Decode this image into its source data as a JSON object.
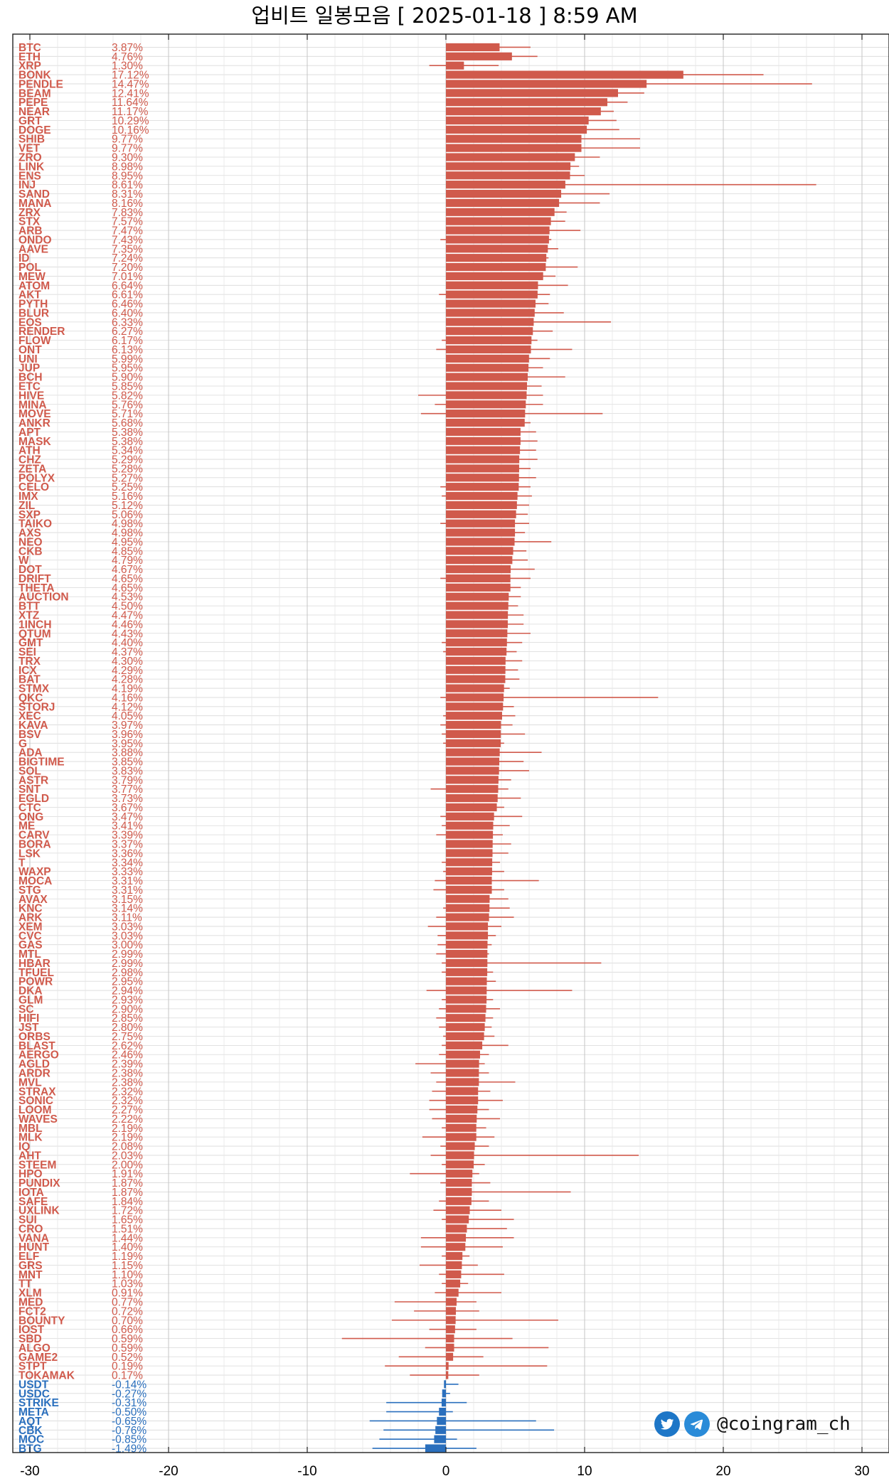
{
  "chart_data": {
    "type": "bar",
    "orientation": "horizontal",
    "title": "업비트 일봉모음 [ 2025-01-18 ]  8:59 AM",
    "xlabel": "",
    "ylabel": "",
    "xlim": [
      -30,
      30
    ],
    "xticks": [
      "-30",
      "-20",
      "-10",
      "0",
      "10",
      "20",
      "30"
    ],
    "grid": true,
    "colors": {
      "positive": "#d05a4c",
      "negative": "#2a6fbd"
    },
    "categories": [
      "BTC",
      "ETH",
      "XRP",
      "BONK",
      "PENDLE",
      "BEAM",
      "PEPE",
      "NEAR",
      "GRT",
      "DOGE",
      "SHIB",
      "VET",
      "ZRO",
      "LINK",
      "ENS",
      "INJ",
      "SAND",
      "MANA",
      "ZRX",
      "STX",
      "ARB",
      "ONDO",
      "AAVE",
      "ID",
      "POL",
      "MEW",
      "ATOM",
      "AKT",
      "PYTH",
      "BLUR",
      "EOS",
      "RENDER",
      "FLOW",
      "ONT",
      "UNI",
      "JUP",
      "BCH",
      "ETC",
      "HIVE",
      "MINA",
      "MOVE",
      "ANKR",
      "APT",
      "MASK",
      "ATH",
      "CHZ",
      "ZETA",
      "POLYX",
      "CELO",
      "IMX",
      "ZIL",
      "SXP",
      "TAIKO",
      "AXS",
      "NEO",
      "CKB",
      "W",
      "DOT",
      "DRIFT",
      "THETA",
      "AUCTION",
      "BTT",
      "XTZ",
      "1INCH",
      "QTUM",
      "GMT",
      "SEI",
      "TRX",
      "ICX",
      "BAT",
      "STMX",
      "QKC",
      "STORJ",
      "XEC",
      "KAVA",
      "BSV",
      "G",
      "ADA",
      "BIGTIME",
      "SOL",
      "ASTR",
      "SNT",
      "EGLD",
      "CTC",
      "ONG",
      "ME",
      "CARV",
      "BORA",
      "LSK",
      "T",
      "WAXP",
      "MOCA",
      "STG",
      "AVAX",
      "KNC",
      "ARK",
      "XEM",
      "CVC",
      "GAS",
      "MTL",
      "HBAR",
      "TFUEL",
      "POWR",
      "DKA",
      "GLM",
      "SC",
      "HIFI",
      "JST",
      "ORBS",
      "BLAST",
      "AERGO",
      "AGLD",
      "ARDR",
      "MVL",
      "STRAX",
      "SONIC",
      "LOOM",
      "WAVES",
      "MBL",
      "MLK",
      "IQ",
      "AHT",
      "STEEM",
      "HPO",
      "PUNDIX",
      "IOTA",
      "SAFE",
      "UXLINK",
      "SUI",
      "CRO",
      "VANA",
      "HUNT",
      "ELF",
      "GRS",
      "MNT",
      "TT",
      "XLM",
      "MED",
      "FCT2",
      "BOUNTY",
      "IOST",
      "SBD",
      "ALGO",
      "GAME2",
      "STPT",
      "TOKAMAK",
      "USDT",
      "USDC",
      "STRIKE",
      "META",
      "AQT",
      "CBK",
      "MOC",
      "BTG"
    ],
    "labels": [
      "3.87%",
      "4.76%",
      "1.30%",
      "17.12%",
      "14.47%",
      "12.41%",
      "11.64%",
      "11.17%",
      "10.29%",
      "10.16%",
      "9.77%",
      "9.77%",
      "9.30%",
      "8.98%",
      "8.95%",
      "8.61%",
      "8.31%",
      "8.16%",
      "7.83%",
      "7.57%",
      "7.47%",
      "7.43%",
      "7.35%",
      "7.24%",
      "7.20%",
      "7.01%",
      "6.64%",
      "6.61%",
      "6.46%",
      "6.40%",
      "6.33%",
      "6.27%",
      "6.17%",
      "6.13%",
      "5.99%",
      "5.95%",
      "5.90%",
      "5.85%",
      "5.82%",
      "5.76%",
      "5.71%",
      "5.68%",
      "5.38%",
      "5.38%",
      "5.34%",
      "5.29%",
      "5.28%",
      "5.27%",
      "5.25%",
      "5.16%",
      "5.12%",
      "5.06%",
      "4.98%",
      "4.98%",
      "4.95%",
      "4.85%",
      "4.79%",
      "4.67%",
      "4.65%",
      "4.65%",
      "4.53%",
      "4.50%",
      "4.47%",
      "4.46%",
      "4.43%",
      "4.40%",
      "4.37%",
      "4.30%",
      "4.29%",
      "4.28%",
      "4.19%",
      "4.16%",
      "4.12%",
      "4.05%",
      "3.97%",
      "3.96%",
      "3.95%",
      "3.88%",
      "3.85%",
      "3.83%",
      "3.79%",
      "3.77%",
      "3.73%",
      "3.67%",
      "3.47%",
      "3.41%",
      "3.39%",
      "3.37%",
      "3.36%",
      "3.34%",
      "3.33%",
      "3.31%",
      "3.31%",
      "3.15%",
      "3.14%",
      "3.11%",
      "3.03%",
      "3.03%",
      "3.00%",
      "2.99%",
      "2.99%",
      "2.98%",
      "2.95%",
      "2.94%",
      "2.93%",
      "2.90%",
      "2.85%",
      "2.80%",
      "2.75%",
      "2.62%",
      "2.46%",
      "2.39%",
      "2.38%",
      "2.38%",
      "2.32%",
      "2.32%",
      "2.27%",
      "2.22%",
      "2.19%",
      "2.19%",
      "2.08%",
      "2.03%",
      "2.00%",
      "1.91%",
      "1.87%",
      "1.87%",
      "1.84%",
      "1.72%",
      "1.65%",
      "1.51%",
      "1.44%",
      "1.40%",
      "1.19%",
      "1.15%",
      "1.10%",
      "1.03%",
      "0.91%",
      "0.77%",
      "0.72%",
      "0.70%",
      "0.66%",
      "0.59%",
      "0.59%",
      "0.52%",
      "0.19%",
      "0.17%",
      "-0.14%",
      "-0.27%",
      "-0.31%",
      "-0.50%",
      "-0.65%",
      "-0.76%",
      "-0.85%",
      "-1.49%"
    ],
    "values": [
      3.87,
      4.76,
      1.3,
      17.12,
      14.47,
      12.41,
      11.64,
      11.17,
      10.29,
      10.16,
      9.77,
      9.77,
      9.3,
      8.98,
      8.95,
      8.61,
      8.31,
      8.16,
      7.83,
      7.57,
      7.47,
      7.43,
      7.35,
      7.24,
      7.2,
      7.01,
      6.64,
      6.61,
      6.46,
      6.4,
      6.33,
      6.27,
      6.17,
      6.13,
      5.99,
      5.95,
      5.9,
      5.85,
      5.82,
      5.76,
      5.71,
      5.68,
      5.38,
      5.38,
      5.34,
      5.29,
      5.28,
      5.27,
      5.25,
      5.16,
      5.12,
      5.06,
      4.98,
      4.98,
      4.95,
      4.85,
      4.79,
      4.67,
      4.65,
      4.65,
      4.53,
      4.5,
      4.47,
      4.46,
      4.43,
      4.4,
      4.37,
      4.3,
      4.29,
      4.28,
      4.19,
      4.16,
      4.12,
      4.05,
      3.97,
      3.96,
      3.95,
      3.88,
      3.85,
      3.83,
      3.79,
      3.77,
      3.73,
      3.67,
      3.47,
      3.41,
      3.39,
      3.37,
      3.36,
      3.34,
      3.33,
      3.31,
      3.31,
      3.15,
      3.14,
      3.11,
      3.03,
      3.03,
      3.0,
      2.99,
      2.99,
      2.98,
      2.95,
      2.94,
      2.93,
      2.9,
      2.85,
      2.8,
      2.75,
      2.62,
      2.46,
      2.39,
      2.38,
      2.38,
      2.32,
      2.32,
      2.27,
      2.22,
      2.19,
      2.19,
      2.08,
      2.03,
      2.0,
      1.91,
      1.87,
      1.87,
      1.84,
      1.72,
      1.65,
      1.51,
      1.44,
      1.4,
      1.19,
      1.15,
      1.1,
      1.03,
      0.91,
      0.77,
      0.72,
      0.7,
      0.66,
      0.59,
      0.59,
      0.52,
      0.19,
      0.17,
      -0.14,
      -0.27,
      -0.31,
      -0.5,
      -0.65,
      -0.76,
      -0.85,
      -1.49
    ],
    "range_low": [
      0,
      0,
      -1.2,
      0,
      0,
      0,
      0,
      0,
      0,
      0,
      0,
      0,
      0,
      0,
      0,
      0,
      0,
      0,
      0,
      0,
      0,
      -0.4,
      0,
      0,
      0,
      0,
      0,
      -0.5,
      0,
      0,
      0,
      0,
      -0.3,
      -0.7,
      0,
      0,
      0,
      0,
      -2.0,
      -0.8,
      -1.8,
      0,
      0,
      0,
      0,
      0,
      0,
      0,
      -0.4,
      -0.3,
      0,
      0,
      -0.4,
      0,
      0,
      0,
      0,
      0,
      -0.4,
      0,
      0,
      0,
      0,
      0,
      0,
      -0.3,
      -0.2,
      0,
      0,
      0,
      0,
      -0.4,
      0,
      -0.2,
      -0.4,
      -0.3,
      -0.2,
      0,
      0,
      0,
      0,
      -1.1,
      0,
      0,
      -0.4,
      -0.3,
      -0.7,
      0,
      0,
      -0.3,
      -0.2,
      -0.8,
      -0.9,
      0,
      -0.2,
      -0.7,
      -1.3,
      -0.6,
      -0.6,
      -0.7,
      -0.3,
      -0.3,
      0,
      -1.4,
      -0.3,
      -0.5,
      -0.7,
      -0.5,
      -0.2,
      -0.3,
      -0.5,
      -2.2,
      -1.1,
      -0.7,
      -1.0,
      -1.2,
      -1.2,
      -1.0,
      -0.3,
      -1.7,
      -0.4,
      -1.1,
      -0.3,
      -2.6,
      -0.4,
      0,
      -0.5,
      -0.9,
      -0.3,
      0,
      -1.8,
      -1.8,
      -0.3,
      -1.9,
      -0.5,
      -0.3,
      -0.8,
      -3.7,
      -2.3,
      -3.9,
      -1.2,
      -7.5,
      -1.5,
      -3.4,
      -4.4,
      -2.6,
      -0.1,
      -0.2,
      -4.3,
      -4.3,
      -5.5,
      -4.5,
      -4.8,
      -5.3
    ],
    "range_high": [
      6.1,
      6.6,
      3.8,
      22.9,
      26.4,
      14.3,
      13.1,
      12.1,
      12.3,
      12.5,
      14.0,
      14.0,
      11.1,
      9.6,
      10.0,
      26.7,
      11.8,
      11.1,
      8.7,
      8.6,
      9.7,
      7.6,
      8.1,
      7.4,
      9.5,
      7.9,
      8.8,
      7.5,
      7.4,
      8.5,
      11.9,
      7.7,
      6.6,
      9.1,
      7.5,
      7.0,
      8.6,
      6.9,
      7.0,
      7.0,
      11.3,
      6.1,
      6.5,
      6.6,
      6.5,
      6.6,
      6.1,
      6.5,
      6.1,
      6.2,
      6.0,
      5.9,
      6.0,
      5.7,
      7.6,
      5.8,
      5.9,
      6.4,
      6.1,
      5.4,
      5.4,
      5.2,
      5.6,
      5.6,
      6.1,
      5.5,
      5.1,
      5.5,
      5.2,
      5.3,
      4.6,
      15.3,
      4.9,
      5.0,
      4.8,
      5.7,
      4.2,
      6.9,
      5.6,
      6.0,
      4.7,
      4.5,
      5.4,
      4.2,
      5.5,
      4.6,
      4.1,
      4.7,
      4.5,
      3.9,
      4.2,
      6.7,
      4.2,
      4.5,
      4.6,
      4.9,
      4.0,
      3.6,
      3.3,
      3.1,
      11.2,
      3.4,
      3.6,
      9.1,
      3.4,
      3.9,
      3.4,
      3.3,
      3.5,
      4.5,
      3.1,
      2.8,
      3.1,
      5.0,
      3.2,
      4.1,
      3.1,
      3.9,
      2.9,
      3.5,
      3.1,
      13.9,
      2.8,
      2.4,
      3.2,
      9.0,
      3.1,
      4.0,
      4.9,
      4.4,
      4.9,
      4.1,
      1.7,
      2.3,
      4.2,
      1.6,
      4.0,
      2.2,
      2.4,
      8.1,
      2.2,
      4.8,
      7.4,
      2.7,
      7.3,
      2.4,
      0.9,
      0.3,
      1.5,
      0.5,
      6.5,
      7.8,
      0.8,
      2.2
    ]
  },
  "watermark": {
    "handle": "@coingram_ch",
    "icons": [
      "twitter-icon",
      "telegram-icon"
    ]
  }
}
